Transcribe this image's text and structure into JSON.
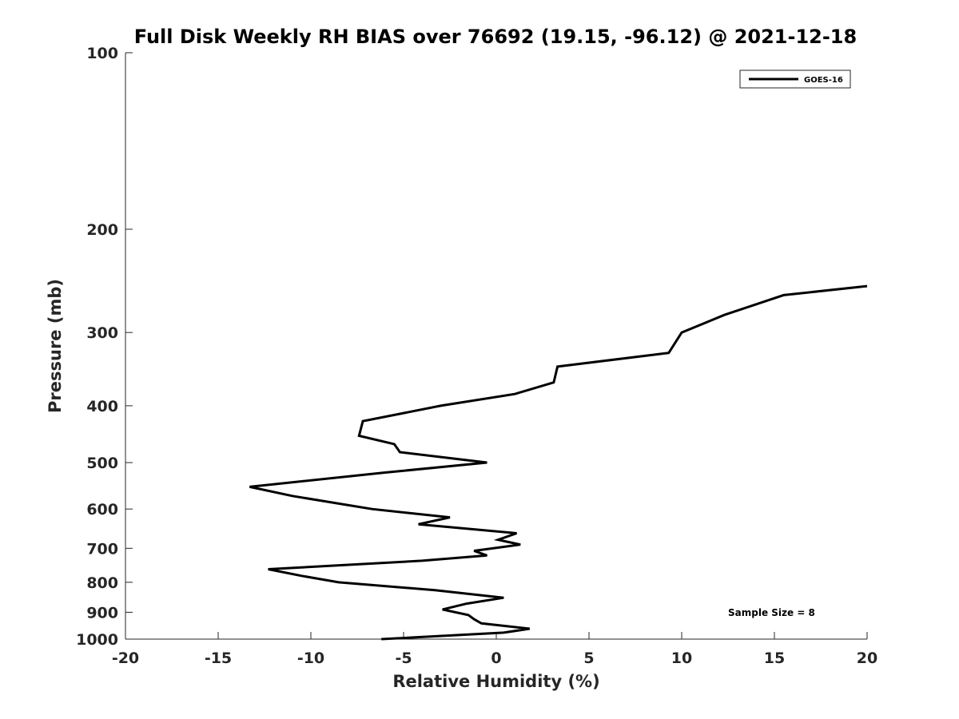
{
  "chart_data": {
    "type": "line",
    "title": "Full Disk Weekly RH BIAS over 76692 (19.15, -96.12) @ 2021-12-18",
    "xlabel": "Relative Humidity (%)",
    "ylabel": "Pressure (mb)",
    "xlim": [
      -20,
      20
    ],
    "ylim": [
      1000,
      100
    ],
    "y_scale": "log",
    "x_ticks": [
      -20,
      -15,
      -10,
      -5,
      0,
      5,
      10,
      15,
      20
    ],
    "y_ticks": [
      100,
      200,
      300,
      400,
      500,
      600,
      700,
      800,
      900,
      1000
    ],
    "grid": false,
    "legend_position": "top-right",
    "annotation": "Sample Size = 8",
    "series": [
      {
        "name": "GOES-16",
        "color": "#000000",
        "points": [
          {
            "x": 20.0,
            "y": 250
          },
          {
            "x": 15.5,
            "y": 259
          },
          {
            "x": 12.3,
            "y": 280
          },
          {
            "x": 10.0,
            "y": 300
          },
          {
            "x": 9.3,
            "y": 325
          },
          {
            "x": 3.3,
            "y": 343
          },
          {
            "x": 3.1,
            "y": 365
          },
          {
            "x": 1.0,
            "y": 382
          },
          {
            "x": -3.0,
            "y": 400
          },
          {
            "x": -7.2,
            "y": 425
          },
          {
            "x": -7.4,
            "y": 450
          },
          {
            "x": -5.5,
            "y": 465
          },
          {
            "x": -5.2,
            "y": 480
          },
          {
            "x": -0.5,
            "y": 500
          },
          {
            "x": -6.0,
            "y": 520
          },
          {
            "x": -13.3,
            "y": 550
          },
          {
            "x": -11.0,
            "y": 570
          },
          {
            "x": -6.7,
            "y": 600
          },
          {
            "x": -2.5,
            "y": 620
          },
          {
            "x": -4.2,
            "y": 637
          },
          {
            "x": 1.1,
            "y": 660
          },
          {
            "x": 0.1,
            "y": 677
          },
          {
            "x": 1.3,
            "y": 690
          },
          {
            "x": -1.2,
            "y": 707
          },
          {
            "x": -0.5,
            "y": 720
          },
          {
            "x": -4.0,
            "y": 735
          },
          {
            "x": -12.3,
            "y": 760
          },
          {
            "x": -10.5,
            "y": 780
          },
          {
            "x": -8.5,
            "y": 800
          },
          {
            "x": -3.3,
            "y": 825
          },
          {
            "x": 0.4,
            "y": 850
          },
          {
            "x": -1.6,
            "y": 870
          },
          {
            "x": -2.9,
            "y": 890
          },
          {
            "x": -1.5,
            "y": 910
          },
          {
            "x": -1.2,
            "y": 925
          },
          {
            "x": -0.8,
            "y": 940
          },
          {
            "x": 1.8,
            "y": 960
          },
          {
            "x": 0.4,
            "y": 975
          },
          {
            "x": -6.2,
            "y": 1000
          }
        ]
      }
    ]
  }
}
